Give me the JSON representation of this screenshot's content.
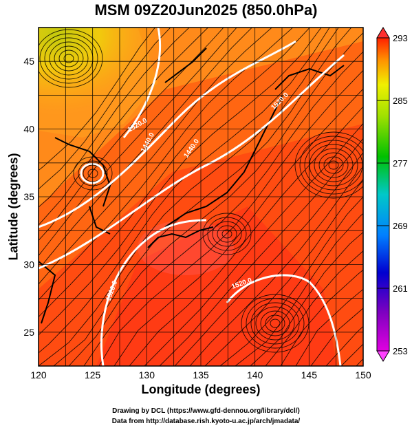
{
  "title": "MSM 09Z20Jun2025 (850.0hPa)",
  "xlabel": "Longitude (degrees)",
  "ylabel": "Latitude  (degrees)",
  "credit_line1": "Drawing by DCL (https://www.gfd-dennou.org/library/dcl/)",
  "credit_line2": "Data from http://database.rish.kyoto-u.ac.jp/arch/jmadata/",
  "map": {
    "lon_range": [
      120,
      150
    ],
    "lat_range": [
      22.5,
      47.5
    ],
    "x_ticks": [
      "120",
      "125",
      "130",
      "135",
      "140",
      "145",
      "150"
    ],
    "y_ticks": [
      "25",
      "30",
      "35",
      "40",
      "45"
    ]
  },
  "contour_labels": [
    "1440.0",
    "1440.0",
    "1520.0",
    "1520.0",
    "1520.0",
    "1520.0"
  ],
  "colorbar": {
    "range": [
      253,
      293
    ],
    "tick_labels": [
      "293",
      "285",
      "277",
      "269",
      "261",
      "253"
    ]
  }
}
